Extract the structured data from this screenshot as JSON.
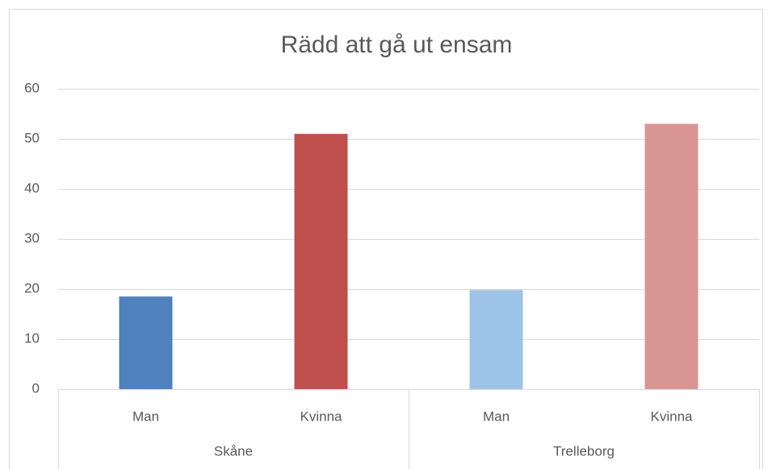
{
  "chart_data": {
    "type": "bar",
    "title": "Rädd att gå ut ensam",
    "categories": [
      "Man",
      "Kvinna",
      "Man",
      "Kvinna"
    ],
    "groups": [
      "Skåne",
      "Trelleborg"
    ],
    "values": [
      18.5,
      51,
      19.8,
      53
    ],
    "colors": [
      "#4f81bd",
      "#c0504d",
      "#9dc3e6",
      "#d99594"
    ],
    "ylim": [
      0,
      60
    ],
    "yticks": [
      0,
      10,
      20,
      30,
      40,
      50,
      60
    ],
    "grid": true
  }
}
